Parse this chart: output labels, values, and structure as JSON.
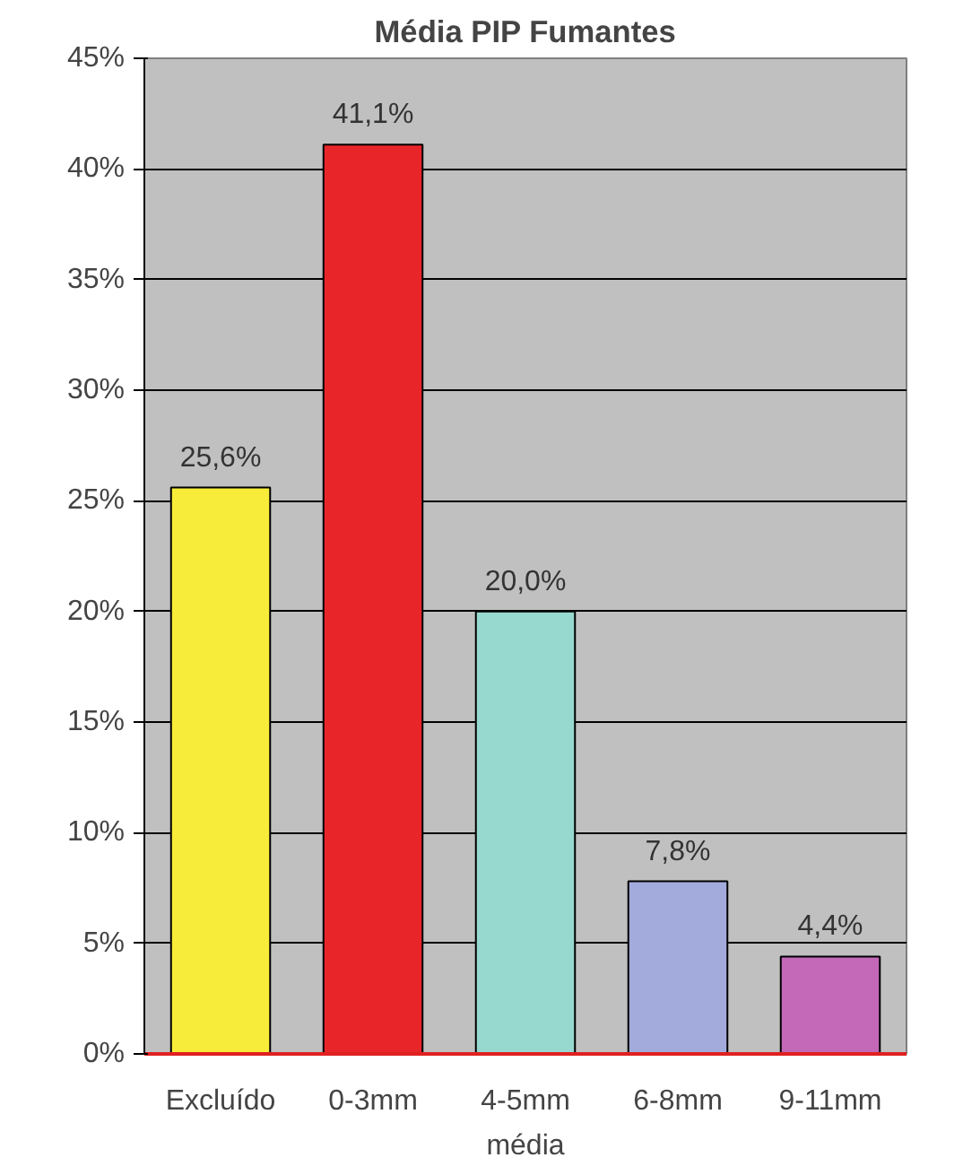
{
  "chart_data": {
    "type": "bar",
    "title": "Média PIP Fumantes",
    "xlabel": "média",
    "categories": [
      "Excluído",
      "0-3mm",
      "4-5mm",
      "6-8mm",
      "9-11mm"
    ],
    "values": [
      25.6,
      41.1,
      20.0,
      7.8,
      4.4
    ],
    "colors": [
      "#f7ec3a",
      "#e8262a",
      "#97d8cf",
      "#a3abdc",
      "#c468b8"
    ],
    "value_labels": [
      "25,6%",
      "41,1%",
      "20,0%",
      "7,8%",
      "4,4%"
    ],
    "ylim": [
      0,
      45
    ],
    "yticks": [
      {
        "value": 0,
        "label": "0%"
      },
      {
        "value": 5,
        "label": "5%"
      },
      {
        "value": 10,
        "label": "10%"
      },
      {
        "value": 15,
        "label": "15%"
      },
      {
        "value": 20,
        "label": "20%"
      },
      {
        "value": 25,
        "label": "25%"
      },
      {
        "value": 30,
        "label": "30%"
      },
      {
        "value": 35,
        "label": "35%"
      },
      {
        "value": 40,
        "label": "40%"
      },
      {
        "value": 45,
        "label": "45%"
      }
    ],
    "grid": "y"
  }
}
